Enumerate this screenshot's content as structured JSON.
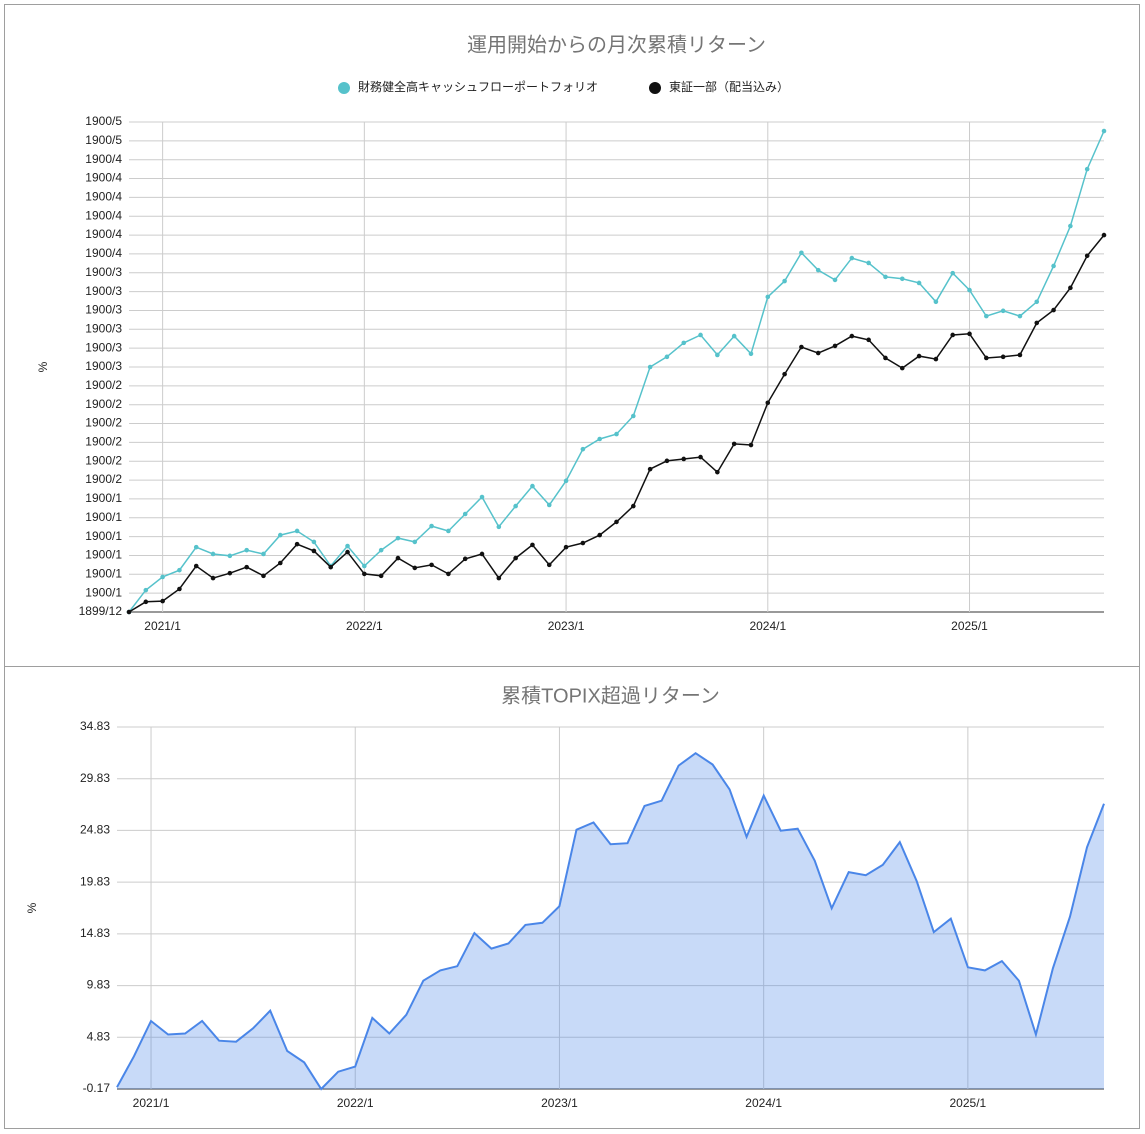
{
  "chart_data": [
    {
      "type": "line",
      "title": "運用開始からの月次累積リターン",
      "y_label": "%",
      "x": [
        "2020/11",
        "2020/12",
        "2021/1",
        "2021/2",
        "2021/3",
        "2021/4",
        "2021/5",
        "2021/6",
        "2021/7",
        "2021/8",
        "2021/9",
        "2021/10",
        "2021/11",
        "2021/12",
        "2022/1",
        "2022/2",
        "2022/3",
        "2022/4",
        "2022/5",
        "2022/6",
        "2022/7",
        "2022/8",
        "2022/9",
        "2022/10",
        "2022/11",
        "2022/12",
        "2023/1",
        "2023/2",
        "2023/3",
        "2023/4",
        "2023/5",
        "2023/6",
        "2023/7",
        "2023/8",
        "2023/9",
        "2023/10",
        "2023/11",
        "2023/12",
        "2024/1",
        "2024/2",
        "2024/3",
        "2024/4",
        "2024/5",
        "2024/6",
        "2024/7",
        "2024/8",
        "2024/9",
        "2024/10",
        "2024/11",
        "2024/12",
        "2025/1",
        "2025/2",
        "2025/3",
        "2025/4",
        "2025/5",
        "2025/6",
        "2025/7",
        "2025/8",
        "2025/9"
      ],
      "xticks": [
        "2021/1",
        "2022/1",
        "2023/1",
        "2024/1",
        "2025/1"
      ],
      "series": [
        {
          "name": "財務健全高キャッシュフローポートフォリオ",
          "color": "#56c2cb",
          "values": [
            0,
            5.8,
            9.3,
            11.1,
            17.2,
            15.4,
            14.9,
            16.4,
            15.4,
            20.4,
            21.5,
            18.6,
            12.2,
            17.5,
            12.2,
            16.4,
            19.6,
            18.6,
            22.8,
            21.5,
            26.0,
            30.5,
            22.6,
            28.1,
            33.4,
            28.4,
            34.8,
            43.2,
            45.9,
            47.2,
            52.0,
            65.0,
            67.7,
            71.4,
            73.5,
            68.2,
            73.2,
            68.5,
            83.6,
            87.8,
            95.3,
            90.7,
            88.1,
            93.9,
            92.6,
            88.9,
            88.4,
            87.3,
            82.3,
            89.9,
            85.4,
            78.5,
            79.9,
            78.5,
            82.3,
            91.8,
            102.4,
            117.5,
            127.6
          ]
        },
        {
          "name": "東証一部（配当込み）",
          "color": "#111111",
          "values": [
            0,
            2.7,
            2.9,
            6.1,
            12.2,
            9.0,
            10.3,
            11.9,
            9.6,
            13.0,
            18.0,
            16.2,
            11.9,
            15.9,
            10.1,
            9.6,
            14.3,
            11.7,
            12.5,
            10.1,
            14.1,
            15.4,
            9.0,
            14.3,
            17.8,
            12.5,
            17.2,
            18.3,
            20.4,
            23.9,
            28.1,
            37.9,
            40.1,
            40.6,
            41.1,
            37.1,
            44.6,
            44.3,
            55.5,
            63.1,
            70.3,
            68.7,
            70.6,
            73.2,
            72.2,
            67.4,
            64.7,
            67.9,
            67.1,
            73.5,
            73.8,
            67.4,
            67.7,
            68.2,
            76.7,
            80.1,
            86.0,
            94.5,
            100.0
          ]
        }
      ],
      "ylim": [
        0,
        130
      ],
      "yticks": [
        {
          "value": 0,
          "label": "1899/12"
        },
        {
          "value": 5,
          "label": "1900/1"
        },
        {
          "value": 10,
          "label": "1900/1"
        },
        {
          "value": 15,
          "label": "1900/1"
        },
        {
          "value": 20,
          "label": "1900/1"
        },
        {
          "value": 25,
          "label": "1900/1"
        },
        {
          "value": 30,
          "label": "1900/1"
        },
        {
          "value": 35,
          "label": "1900/2"
        },
        {
          "value": 40,
          "label": "1900/2"
        },
        {
          "value": 45,
          "label": "1900/2"
        },
        {
          "value": 50,
          "label": "1900/2"
        },
        {
          "value": 55,
          "label": "1900/2"
        },
        {
          "value": 60,
          "label": "1900/2"
        },
        {
          "value": 65,
          "label": "1900/3"
        },
        {
          "value": 70,
          "label": "1900/3"
        },
        {
          "value": 75,
          "label": "1900/3"
        },
        {
          "value": 80,
          "label": "1900/3"
        },
        {
          "value": 85,
          "label": "1900/3"
        },
        {
          "value": 90,
          "label": "1900/3"
        },
        {
          "value": 95,
          "label": "1900/4"
        },
        {
          "value": 100,
          "label": "1900/4"
        },
        {
          "value": 105,
          "label": "1900/4"
        },
        {
          "value": 110,
          "label": "1900/4"
        },
        {
          "value": 115,
          "label": "1900/4"
        },
        {
          "value": 120,
          "label": "1900/4"
        },
        {
          "value": 125,
          "label": "1900/5"
        },
        {
          "value": 130,
          "label": "1900/5"
        }
      ],
      "grid": true,
      "legend": "top",
      "markers": true
    },
    {
      "type": "area",
      "title": "累積TOPIX超過リターン",
      "y_label": "%",
      "x": [
        "2020/11",
        "2020/12",
        "2021/1",
        "2021/2",
        "2021/3",
        "2021/4",
        "2021/5",
        "2021/6",
        "2021/7",
        "2021/8",
        "2021/9",
        "2021/10",
        "2021/11",
        "2021/12",
        "2022/1",
        "2022/2",
        "2022/3",
        "2022/4",
        "2022/5",
        "2022/6",
        "2022/7",
        "2022/8",
        "2022/9",
        "2022/10",
        "2022/11",
        "2022/12",
        "2023/1",
        "2023/2",
        "2023/3",
        "2023/4",
        "2023/5",
        "2023/6",
        "2023/7",
        "2023/8",
        "2023/9",
        "2023/10",
        "2023/11",
        "2023/12",
        "2024/1",
        "2024/2",
        "2024/3",
        "2024/4",
        "2024/5",
        "2024/6",
        "2024/7",
        "2024/8",
        "2024/9",
        "2024/10",
        "2024/11",
        "2024/12",
        "2025/1",
        "2025/2",
        "2025/3",
        "2025/4",
        "2025/5",
        "2025/6",
        "2025/7",
        "2025/8",
        "2025/9"
      ],
      "xticks": [
        "2021/1",
        "2022/1",
        "2023/1",
        "2024/1",
        "2025/1"
      ],
      "values": [
        0,
        3.0,
        6.4,
        5.1,
        5.2,
        6.4,
        4.5,
        4.4,
        5.7,
        7.4,
        3.5,
        2.4,
        -0.17,
        1.5,
        2.0,
        6.7,
        5.2,
        7.0,
        10.3,
        11.3,
        11.7,
        14.9,
        13.4,
        13.9,
        15.7,
        15.9,
        17.5,
        24.9,
        25.6,
        23.5,
        23.6,
        27.2,
        27.7,
        31.1,
        32.3,
        31.2,
        28.8,
        24.2,
        28.2,
        24.8,
        25.0,
        21.9,
        17.3,
        20.8,
        20.5,
        21.5,
        23.7,
        19.9,
        15.0,
        16.3,
        11.6,
        11.3,
        12.2,
        10.3,
        5.1,
        11.5,
        16.5,
        23.2,
        27.4
      ],
      "color": "#4a86e8",
      "ylim": [
        -0.17,
        34.83
      ],
      "yticks": [
        -0.17,
        4.83,
        9.83,
        14.83,
        19.83,
        24.83,
        29.83,
        34.83
      ],
      "grid": true
    }
  ]
}
